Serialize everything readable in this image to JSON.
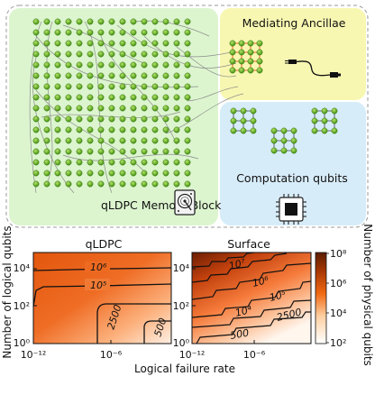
{
  "diagram": {
    "memory_block": {
      "label": "qLDPC Memory Block",
      "icon": "hard-disk-icon"
    },
    "ancillae": {
      "label": "Mediating Ancillae",
      "icon": "cable-icon"
    },
    "computation": {
      "label": "Computation qubits",
      "icon": "chip-icon"
    }
  },
  "chart_data": [
    {
      "type": "heatmap",
      "title": "qLDPC",
      "xlabel": "Logical failure rate",
      "ylabel": "Number of logical qubits",
      "x_ticks": [
        "10⁻¹²",
        "10⁻⁶"
      ],
      "y_ticks": [
        "10⁰",
        "10²",
        "10⁴"
      ],
      "contours": [
        {
          "label": "10⁶"
        },
        {
          "label": "10⁵"
        },
        {
          "label": "2500"
        },
        {
          "label": "500"
        }
      ]
    },
    {
      "type": "heatmap",
      "title": "Surface",
      "xlabel": "Logical failure rate",
      "x_ticks": [
        "10⁻¹²",
        "10⁻⁶"
      ],
      "y_ticks": [
        "10⁰",
        "10²",
        "10⁴"
      ],
      "contours": [
        {
          "label": "10⁷"
        },
        {
          "label": "10⁶"
        },
        {
          "label": "10⁵"
        },
        {
          "label": "10⁴"
        },
        {
          "label": "2500"
        },
        {
          "label": "500"
        }
      ],
      "colorbar": {
        "label": "Number of physical qubits",
        "ticks": [
          "10⁸",
          "10⁶",
          "10⁴",
          "10²"
        ],
        "colors": [
          "#ffffff",
          "#fdd0a2",
          "#f16913",
          "#a63603",
          "#5a1d02"
        ]
      }
    }
  ]
}
